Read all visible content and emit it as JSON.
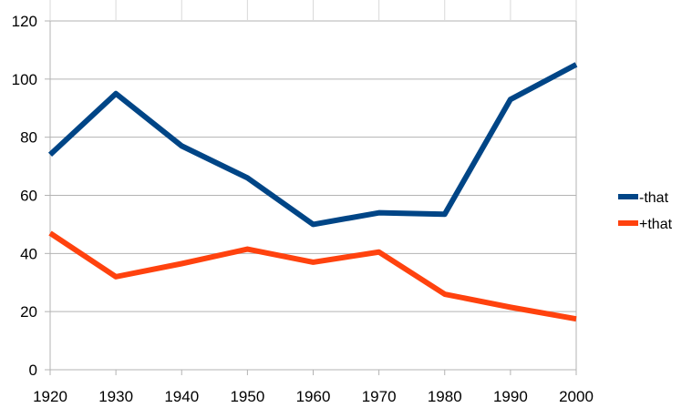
{
  "chart_data": {
    "type": "line",
    "title": "",
    "xlabel": "",
    "ylabel": "",
    "x": [
      1920,
      1930,
      1940,
      1950,
      1960,
      1970,
      1980,
      1990,
      2000
    ],
    "ylim": [
      0,
      120
    ],
    "yticks": [
      0,
      20,
      40,
      60,
      80,
      100,
      120
    ],
    "grid": true,
    "legend_position": "right",
    "series": [
      {
        "name": "-that",
        "color": "#004586",
        "values": [
          74,
          95,
          77,
          66,
          50,
          54,
          53.5,
          93,
          105
        ]
      },
      {
        "name": "+that",
        "color": "#ff420e",
        "values": [
          47,
          32,
          36.5,
          41.5,
          37,
          40.5,
          26,
          21.5,
          17.5
        ]
      }
    ]
  }
}
